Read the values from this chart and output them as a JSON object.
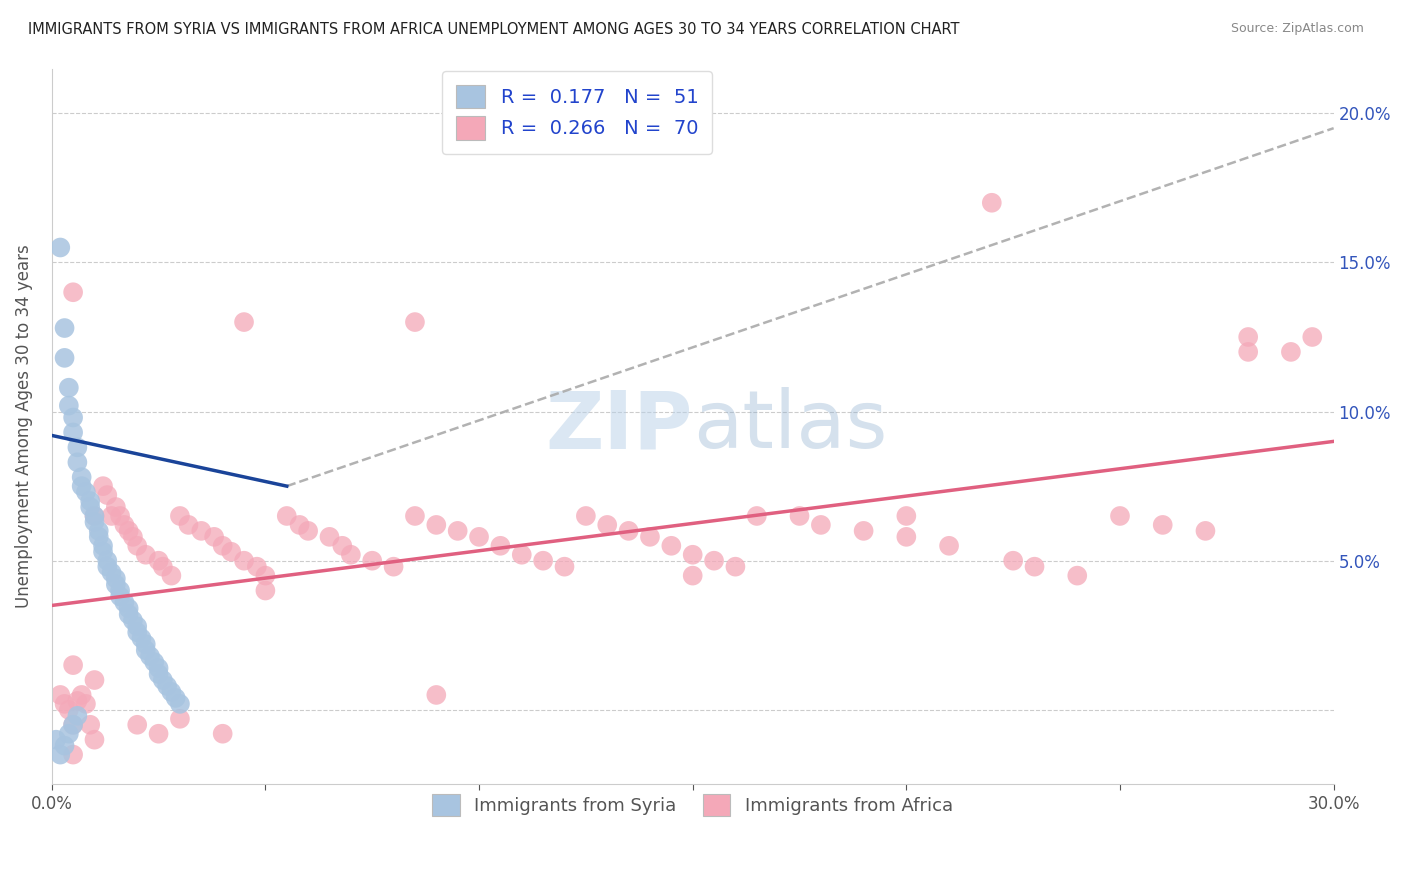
{
  "title": "IMMIGRANTS FROM SYRIA VS IMMIGRANTS FROM AFRICA UNEMPLOYMENT AMONG AGES 30 TO 34 YEARS CORRELATION CHART",
  "source": "Source: ZipAtlas.com",
  "ylabel": "Unemployment Among Ages 30 to 34 years",
  "xlim": [
    0.0,
    0.3
  ],
  "ylim": [
    -0.025,
    0.215
  ],
  "syria_color": "#a8c4e0",
  "africa_color": "#f4a8b8",
  "syria_line_color": "#1a4499",
  "africa_line_color": "#e06080",
  "trendline_color": "#aaaaaa",
  "watermark_color": "#b8d0e8",
  "syria_line_x": [
    0.0,
    0.055
  ],
  "syria_line_y": [
    0.092,
    0.075
  ],
  "africa_line_x": [
    0.0,
    0.3
  ],
  "africa_line_y": [
    0.035,
    0.09
  ],
  "dashed_line_x": [
    0.055,
    0.3
  ],
  "dashed_line_y": [
    0.075,
    0.195
  ],
  "syria_scatter": [
    [
      0.002,
      0.155
    ],
    [
      0.003,
      0.128
    ],
    [
      0.003,
      0.118
    ],
    [
      0.004,
      0.108
    ],
    [
      0.004,
      0.102
    ],
    [
      0.005,
      0.098
    ],
    [
      0.005,
      0.093
    ],
    [
      0.006,
      0.088
    ],
    [
      0.006,
      0.083
    ],
    [
      0.007,
      0.078
    ],
    [
      0.007,
      0.075
    ],
    [
      0.008,
      0.073
    ],
    [
      0.009,
      0.07
    ],
    [
      0.009,
      0.068
    ],
    [
      0.01,
      0.065
    ],
    [
      0.01,
      0.063
    ],
    [
      0.011,
      0.06
    ],
    [
      0.011,
      0.058
    ],
    [
      0.012,
      0.055
    ],
    [
      0.012,
      0.053
    ],
    [
      0.013,
      0.05
    ],
    [
      0.013,
      0.048
    ],
    [
      0.014,
      0.046
    ],
    [
      0.015,
      0.044
    ],
    [
      0.015,
      0.042
    ],
    [
      0.016,
      0.04
    ],
    [
      0.016,
      0.038
    ],
    [
      0.017,
      0.036
    ],
    [
      0.018,
      0.034
    ],
    [
      0.018,
      0.032
    ],
    [
      0.019,
      0.03
    ],
    [
      0.02,
      0.028
    ],
    [
      0.02,
      0.026
    ],
    [
      0.021,
      0.024
    ],
    [
      0.022,
      0.022
    ],
    [
      0.022,
      0.02
    ],
    [
      0.023,
      0.018
    ],
    [
      0.024,
      0.016
    ],
    [
      0.025,
      0.014
    ],
    [
      0.025,
      0.012
    ],
    [
      0.026,
      0.01
    ],
    [
      0.027,
      0.008
    ],
    [
      0.028,
      0.006
    ],
    [
      0.029,
      0.004
    ],
    [
      0.03,
      0.002
    ],
    [
      0.001,
      -0.01
    ],
    [
      0.002,
      -0.015
    ],
    [
      0.003,
      -0.012
    ],
    [
      0.004,
      -0.008
    ],
    [
      0.005,
      -0.005
    ],
    [
      0.006,
      -0.002
    ]
  ],
  "africa_scatter": [
    [
      0.002,
      0.005
    ],
    [
      0.003,
      0.002
    ],
    [
      0.004,
      0.0
    ],
    [
      0.005,
      -0.005
    ],
    [
      0.006,
      0.003
    ],
    [
      0.007,
      0.005
    ],
    [
      0.008,
      0.002
    ],
    [
      0.009,
      -0.005
    ],
    [
      0.01,
      0.065
    ],
    [
      0.012,
      0.075
    ],
    [
      0.013,
      0.072
    ],
    [
      0.014,
      0.065
    ],
    [
      0.015,
      0.068
    ],
    [
      0.016,
      0.065
    ],
    [
      0.017,
      0.062
    ],
    [
      0.018,
      0.06
    ],
    [
      0.019,
      0.058
    ],
    [
      0.02,
      0.055
    ],
    [
      0.022,
      0.052
    ],
    [
      0.025,
      0.05
    ],
    [
      0.026,
      0.048
    ],
    [
      0.028,
      0.045
    ],
    [
      0.03,
      0.065
    ],
    [
      0.032,
      0.062
    ],
    [
      0.035,
      0.06
    ],
    [
      0.038,
      0.058
    ],
    [
      0.04,
      0.055
    ],
    [
      0.042,
      0.053
    ],
    [
      0.045,
      0.05
    ],
    [
      0.048,
      0.048
    ],
    [
      0.05,
      0.045
    ],
    [
      0.055,
      0.065
    ],
    [
      0.058,
      0.062
    ],
    [
      0.06,
      0.06
    ],
    [
      0.065,
      0.058
    ],
    [
      0.068,
      0.055
    ],
    [
      0.07,
      0.052
    ],
    [
      0.075,
      0.05
    ],
    [
      0.08,
      0.048
    ],
    [
      0.085,
      0.065
    ],
    [
      0.09,
      0.062
    ],
    [
      0.095,
      0.06
    ],
    [
      0.1,
      0.058
    ],
    [
      0.105,
      0.055
    ],
    [
      0.11,
      0.052
    ],
    [
      0.115,
      0.05
    ],
    [
      0.12,
      0.048
    ],
    [
      0.125,
      0.065
    ],
    [
      0.13,
      0.062
    ],
    [
      0.135,
      0.06
    ],
    [
      0.14,
      0.058
    ],
    [
      0.145,
      0.055
    ],
    [
      0.15,
      0.052
    ],
    [
      0.155,
      0.05
    ],
    [
      0.16,
      0.048
    ],
    [
      0.165,
      0.065
    ],
    [
      0.175,
      0.065
    ],
    [
      0.18,
      0.062
    ],
    [
      0.19,
      0.06
    ],
    [
      0.2,
      0.058
    ],
    [
      0.21,
      0.055
    ],
    [
      0.22,
      0.17
    ],
    [
      0.225,
      0.05
    ],
    [
      0.23,
      0.048
    ],
    [
      0.24,
      0.045
    ],
    [
      0.25,
      0.065
    ],
    [
      0.26,
      0.062
    ],
    [
      0.27,
      0.06
    ],
    [
      0.005,
      0.14
    ],
    [
      0.045,
      0.13
    ],
    [
      0.085,
      0.13
    ],
    [
      0.28,
      0.125
    ],
    [
      0.29,
      0.12
    ],
    [
      0.005,
      0.015
    ],
    [
      0.01,
      0.01
    ],
    [
      0.05,
      0.04
    ],
    [
      0.09,
      0.005
    ],
    [
      0.15,
      0.045
    ],
    [
      0.2,
      0.065
    ],
    [
      0.005,
      -0.015
    ],
    [
      0.01,
      -0.01
    ],
    [
      0.02,
      -0.005
    ],
    [
      0.025,
      -0.008
    ],
    [
      0.03,
      -0.003
    ],
    [
      0.04,
      -0.008
    ],
    [
      0.28,
      0.12
    ],
    [
      0.295,
      0.125
    ]
  ]
}
